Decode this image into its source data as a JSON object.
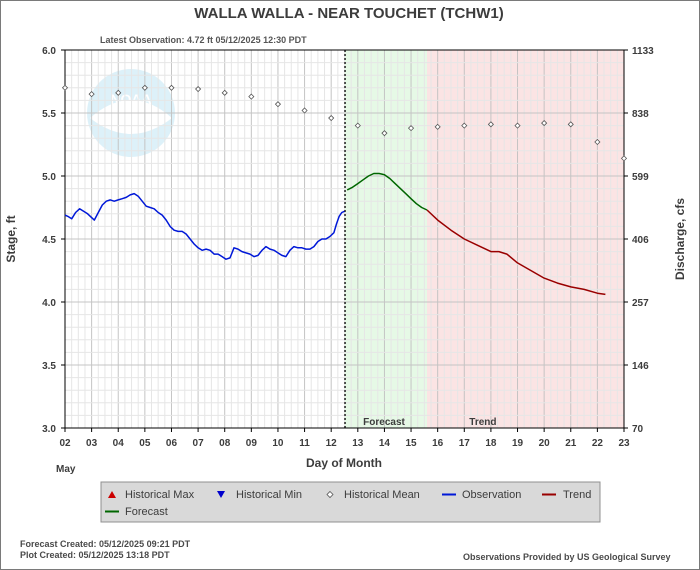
{
  "header": {
    "title": "WALLA WALLA - NEAR TOUCHET  (TCHW1)",
    "latest_observation": "Latest Observation: 4.72 ft 05/12/2025 12:30 PDT"
  },
  "footer": {
    "forecast_created": "Forecast Created: 05/12/2025 09:21 PDT",
    "plot_created": "Plot Created: 05/12/2025 13:18 PDT",
    "provider": "Observations Provided by US Geological Survey"
  },
  "watermark": {
    "text": "NOAA"
  },
  "colors": {
    "observation": "#0018d8",
    "forecast": "#006600",
    "trend": "#990000",
    "forecast_band": "#e6f9e6",
    "trend_band": "#fbe4e4",
    "historical_max": "#cc0000",
    "historical_min": "#0000cc",
    "grid": "#cfcfcf"
  },
  "chart_data": {
    "type": "line",
    "title": "WALLA WALLA - NEAR TOUCHET  (TCHW1)",
    "xlabel": "Day of Month",
    "xlabel_month": "May",
    "ylabel": "Stage, ft",
    "y2label": "Discharge, cfs",
    "xlim": [
      2,
      23
    ],
    "ylim": [
      3.0,
      6.0
    ],
    "x_ticks": [
      "02",
      "03",
      "04",
      "05",
      "06",
      "07",
      "08",
      "09",
      "10",
      "11",
      "12",
      "13",
      "14",
      "15",
      "16",
      "17",
      "18",
      "19",
      "20",
      "21",
      "22",
      "23"
    ],
    "y_ticks": [
      "3.0",
      "3.5",
      "4.0",
      "4.5",
      "5.0",
      "5.5",
      "6.0"
    ],
    "y2_ticks": [
      {
        "label": "70",
        "stage": 3.0
      },
      {
        "label": "146",
        "stage": 3.5
      },
      {
        "label": "257",
        "stage": 4.0
      },
      {
        "label": "406",
        "stage": 4.5
      },
      {
        "label": "599",
        "stage": 5.0
      },
      {
        "label": "838",
        "stage": 5.5
      },
      {
        "label": "1133",
        "stage": 6.0
      }
    ],
    "current_time_day": 12.52,
    "forecast_region": {
      "label": "Forecast",
      "start": 12.52,
      "end": 15.6
    },
    "trend_region": {
      "label": "Trend",
      "start": 15.6,
      "end": 23.0
    },
    "legend": {
      "position": "bottom",
      "entries": [
        "Historical Max",
        "Historical Min",
        "Historical Mean",
        "Observation",
        "Trend",
        "Forecast"
      ]
    },
    "series": [
      {
        "name": "Observation",
        "x": [
          2.0,
          2.1,
          2.25,
          2.4,
          2.55,
          2.7,
          2.85,
          3.0,
          3.1,
          3.25,
          3.4,
          3.55,
          3.7,
          3.85,
          4.0,
          4.15,
          4.3,
          4.45,
          4.6,
          4.75,
          4.9,
          5.05,
          5.2,
          5.35,
          5.5,
          5.65,
          5.8,
          5.95,
          6.1,
          6.25,
          6.4,
          6.55,
          6.7,
          6.85,
          7.0,
          7.15,
          7.3,
          7.45,
          7.6,
          7.75,
          7.9,
          8.05,
          8.2,
          8.35,
          8.5,
          8.65,
          8.8,
          8.95,
          9.1,
          9.25,
          9.4,
          9.55,
          9.7,
          9.85,
          10.0,
          10.15,
          10.3,
          10.45,
          10.6,
          10.75,
          10.9,
          11.05,
          11.2,
          11.35,
          11.5,
          11.65,
          11.8,
          11.95,
          12.1,
          12.2,
          12.3,
          12.4,
          12.5
        ],
        "values": [
          4.69,
          4.68,
          4.66,
          4.71,
          4.74,
          4.72,
          4.7,
          4.67,
          4.65,
          4.71,
          4.77,
          4.8,
          4.81,
          4.8,
          4.81,
          4.82,
          4.83,
          4.85,
          4.86,
          4.84,
          4.8,
          4.76,
          4.75,
          4.74,
          4.71,
          4.69,
          4.65,
          4.6,
          4.57,
          4.56,
          4.56,
          4.54,
          4.5,
          4.46,
          4.43,
          4.41,
          4.42,
          4.41,
          4.38,
          4.38,
          4.36,
          4.34,
          4.35,
          4.43,
          4.42,
          4.4,
          4.39,
          4.38,
          4.36,
          4.37,
          4.41,
          4.44,
          4.42,
          4.41,
          4.39,
          4.37,
          4.36,
          4.41,
          4.44,
          4.43,
          4.43,
          4.42,
          4.42,
          4.44,
          4.48,
          4.5,
          4.5,
          4.52,
          4.55,
          4.62,
          4.68,
          4.71,
          4.72
        ]
      },
      {
        "name": "Forecast",
        "x": [
          12.6,
          12.8,
          13.0,
          13.2,
          13.4,
          13.6,
          13.8,
          14.0,
          14.2,
          14.4,
          14.6,
          14.8,
          15.0,
          15.2,
          15.4,
          15.6
        ],
        "values": [
          4.89,
          4.91,
          4.94,
          4.97,
          5.0,
          5.02,
          5.02,
          5.01,
          4.98,
          4.94,
          4.9,
          4.86,
          4.82,
          4.78,
          4.75,
          4.73
        ]
      },
      {
        "name": "Trend",
        "x": [
          15.6,
          16.0,
          16.5,
          17.0,
          17.5,
          18.0,
          18.3,
          18.6,
          19.0,
          19.5,
          20.0,
          20.5,
          21.0,
          21.5,
          22.0,
          22.3
        ],
        "values": [
          4.73,
          4.65,
          4.57,
          4.5,
          4.45,
          4.4,
          4.4,
          4.38,
          4.31,
          4.25,
          4.19,
          4.15,
          4.12,
          4.1,
          4.07,
          4.06
        ]
      },
      {
        "name": "Historical Mean",
        "x": [
          2,
          3,
          4,
          5,
          6,
          7,
          8,
          9,
          10,
          11,
          12,
          13,
          14,
          15,
          16,
          17,
          18,
          19,
          20,
          21,
          22,
          23
        ],
        "values": [
          5.7,
          5.65,
          5.66,
          5.7,
          5.7,
          5.69,
          5.66,
          5.63,
          5.57,
          5.52,
          5.46,
          5.4,
          5.34,
          5.38,
          5.39,
          5.4,
          5.41,
          5.4,
          5.42,
          5.41,
          5.27,
          5.14
        ]
      }
    ]
  }
}
